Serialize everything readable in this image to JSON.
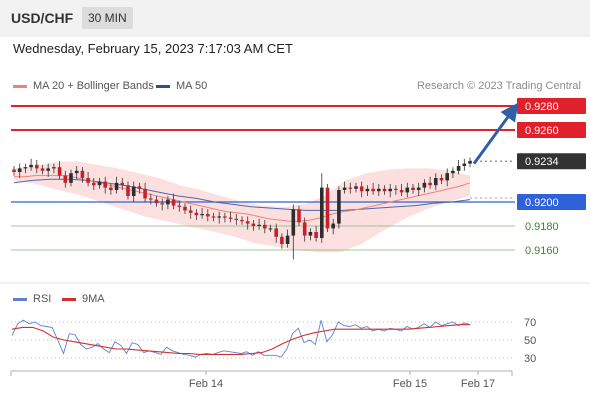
{
  "header": {
    "symbol": "USD/CHF",
    "timeframe": "30 MIN"
  },
  "datetime": "Wednesday, February 15, 2023 7:17:03 AM CET",
  "legend": {
    "ma20": "MA 20 + Bollinger Bands",
    "ma50": "MA 50",
    "rsi": "RSI",
    "ma9": "9MA"
  },
  "credit": "Research © 2023 Trading Central",
  "colors": {
    "up": "#2d2d2d",
    "down": "#c8202a",
    "resistance": "#e0202a",
    "support": "#2f62d8",
    "target": "#3a8b2a",
    "bollinger": "#fbdada",
    "ma20": "#f08080",
    "ma50": "#4a6aa8",
    "rsi": "#5f7fd0",
    "rsi_ma": "#d03030",
    "arrow": "#2f5fa8"
  },
  "chart_data": [
    {
      "type": "candlestick",
      "title": "USD/CHF 30 MIN",
      "x_labels": [
        "Feb 14",
        "Feb 15",
        "Feb 17"
      ],
      "current_price": "0.9234",
      "price_levels": [
        {
          "label": "0.9280",
          "value": 0.928,
          "kind": "resistance"
        },
        {
          "label": "0.9260",
          "value": 0.926,
          "kind": "resistance"
        },
        {
          "label": "0.9234",
          "value": 0.9234,
          "kind": "last"
        },
        {
          "label": "0.9200",
          "value": 0.92,
          "kind": "support"
        },
        {
          "label": "0.9180",
          "value": 0.918,
          "kind": "target"
        },
        {
          "label": "0.9160",
          "value": 0.916,
          "kind": "target"
        }
      ],
      "projection": {
        "from": 0.9232,
        "to": 0.928
      },
      "close_series": [
        0.9225,
        0.9228,
        0.9229,
        0.9231,
        0.9228,
        0.9226,
        0.9228,
        0.9229,
        0.9222,
        0.9216,
        0.9224,
        0.9226,
        0.922,
        0.9216,
        0.9214,
        0.9217,
        0.9212,
        0.921,
        0.9216,
        0.9214,
        0.9205,
        0.9213,
        0.9211,
        0.9203,
        0.9202,
        0.9199,
        0.9198,
        0.9202,
        0.9197,
        0.9196,
        0.9193,
        0.9191,
        0.9189,
        0.919,
        0.9188,
        0.9187,
        0.9188,
        0.9187,
        0.9186,
        0.9185,
        0.9184,
        0.9182,
        0.918,
        0.9181,
        0.9178,
        0.9178,
        0.9171,
        0.9165,
        0.9172,
        0.9194,
        0.9183,
        0.9172,
        0.9175,
        0.917,
        0.9212,
        0.9178,
        0.9182,
        0.921,
        0.9212,
        0.9211,
        0.9213,
        0.9209,
        0.9211,
        0.9209,
        0.9211,
        0.9209,
        0.9211,
        0.921,
        0.9208,
        0.9212,
        0.921,
        0.9212,
        0.9216,
        0.9214,
        0.922,
        0.9218,
        0.9224,
        0.9226,
        0.923,
        0.9232,
        0.9234
      ],
      "ma20": [
        0.9221,
        0.9221,
        0.9222,
        0.9222,
        0.9222,
        0.9222,
        0.922,
        0.9218,
        0.9216,
        0.9214,
        0.9212,
        0.921,
        0.9208,
        0.9206,
        0.9204,
        0.9202,
        0.92,
        0.9198,
        0.9196,
        0.9194,
        0.9192,
        0.9191,
        0.919,
        0.9188,
        0.9186,
        0.9185,
        0.9184,
        0.9184,
        0.9185,
        0.9187,
        0.919,
        0.9192,
        0.9193,
        0.9195,
        0.9197,
        0.9199,
        0.9201,
        0.9203,
        0.9205,
        0.9207,
        0.9209,
        0.9211,
        0.9213,
        0.9216
      ],
      "ma50": [
        0.9216,
        0.9218,
        0.9219,
        0.9219,
        0.9218,
        0.9216,
        0.9214,
        0.9211,
        0.9208,
        0.9205,
        0.9203,
        0.92,
        0.9198,
        0.9196,
        0.9195,
        0.9194,
        0.9193,
        0.9193,
        0.9193,
        0.9194,
        0.9195,
        0.9196,
        0.9197,
        0.9199,
        0.92,
        0.9202
      ],
      "bb_upper": [
        0.9228,
        0.923,
        0.9233,
        0.9234,
        0.9231,
        0.9228,
        0.9224,
        0.922,
        0.9214,
        0.921,
        0.9205,
        0.92,
        0.9197,
        0.9196,
        0.9198,
        0.9205,
        0.9218,
        0.9224,
        0.9227,
        0.9228,
        0.9228,
        0.9226,
        0.9222
      ],
      "bb_lower": [
        0.9218,
        0.9215,
        0.921,
        0.9206,
        0.92,
        0.9194,
        0.9188,
        0.9184,
        0.918,
        0.9176,
        0.9172,
        0.9166,
        0.9163,
        0.916,
        0.9158,
        0.9158,
        0.9165,
        0.9176,
        0.9186,
        0.9194,
        0.92,
        0.9205
      ]
    },
    {
      "type": "line",
      "title": "RSI",
      "y_ticks": [
        "70",
        "50",
        "30"
      ],
      "ylim": [
        20,
        80
      ],
      "series": [
        {
          "name": "RSI",
          "values": [
            55,
            68,
            72,
            68,
            70,
            66,
            65,
            64,
            50,
            35,
            57,
            56,
            45,
            40,
            42,
            46,
            40,
            36,
            48,
            44,
            35,
            47,
            45,
            36,
            38,
            36,
            34,
            42,
            38,
            36,
            34,
            33,
            31,
            34,
            35,
            34,
            36,
            38,
            37,
            36,
            35,
            37,
            33,
            37,
            33,
            33,
            33,
            31,
            40,
            57,
            63,
            47,
            50,
            45,
            72,
            48,
            56,
            70,
            66,
            65,
            67,
            63,
            65,
            60,
            62,
            60,
            63,
            62,
            60,
            65,
            62,
            64,
            68,
            64,
            70,
            66,
            68,
            70,
            66,
            69,
            67
          ]
        },
        {
          "name": "9MA",
          "values": [
            62,
            64,
            64,
            60,
            53,
            50,
            48,
            46,
            44,
            42,
            40,
            40,
            39,
            38,
            37,
            36,
            35,
            35,
            34,
            34,
            34,
            34,
            34,
            35,
            36,
            40,
            46,
            51,
            55,
            58,
            60,
            62,
            62,
            62,
            62,
            62,
            62,
            62,
            62,
            63,
            64,
            65,
            66,
            67,
            67
          ]
        }
      ]
    }
  ]
}
